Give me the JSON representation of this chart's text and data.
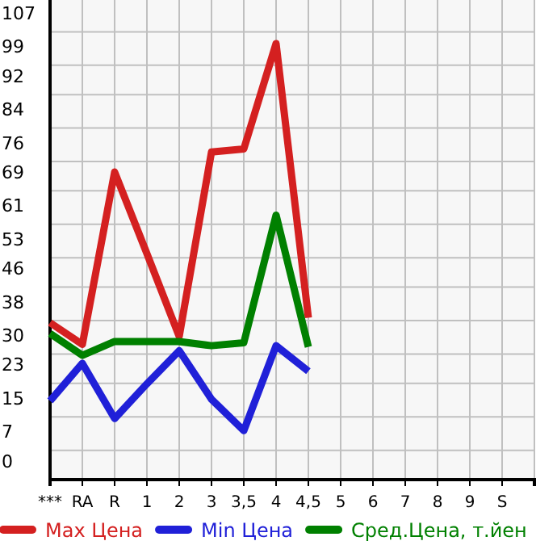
{
  "chart_data": {
    "type": "line",
    "categories": [
      "***",
      "RA",
      "R",
      "1",
      "2",
      "3",
      "3,5",
      "4",
      "4,5",
      "5",
      "6",
      "7",
      "8",
      "9",
      "S"
    ],
    "ylim": [
      0,
      114.6
    ],
    "yticks": [
      0,
      7,
      15,
      23,
      30,
      38,
      46,
      53,
      61,
      69,
      76,
      84,
      92,
      99,
      107
    ],
    "grid": true,
    "legend": "bottom",
    "line_style": "solid",
    "marker": "none",
    "series": [
      {
        "name": "Max Цена",
        "color": "#d42020",
        "values": [
          37.5,
          32.3,
          73.5,
          54,
          34.2,
          78.3,
          79,
          104.2,
          38.7,
          null,
          null,
          null,
          null,
          null,
          null
        ]
      },
      {
        "name": "Min Цена",
        "color": "#2020d8",
        "values": [
          18.8,
          27.8,
          14.6,
          22.9,
          30.8,
          19.2,
          11.7,
          32,
          25.9,
          null,
          null,
          null,
          null,
          null,
          null
        ]
      },
      {
        "name": "Сред.Цена, т.йен",
        "color": "#008000",
        "values": [
          34.9,
          29.7,
          33,
          33,
          33,
          32,
          32.7,
          63.2,
          31.7,
          null,
          null,
          null,
          null,
          null,
          null
        ]
      }
    ]
  }
}
